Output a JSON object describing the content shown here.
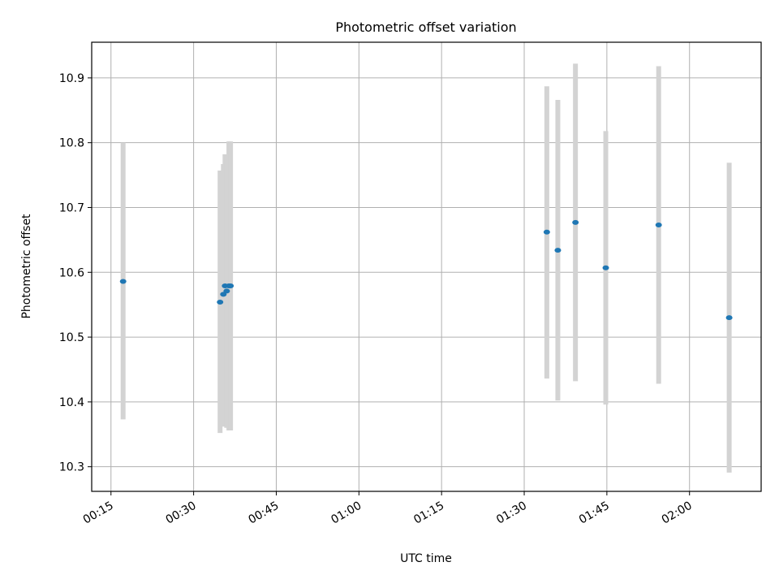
{
  "chart_data": {
    "type": "scatter",
    "title": "Photometric offset variation",
    "xlabel": "UTC time",
    "ylabel": "Photometric offset",
    "x_ticks": [
      "00:15",
      "00:30",
      "00:45",
      "01:00",
      "01:15",
      "01:30",
      "01:45",
      "02:00"
    ],
    "y_ticks": [
      10.3,
      10.4,
      10.5,
      10.6,
      10.7,
      10.8,
      10.9
    ],
    "xlim": [
      "00:11:30",
      "02:13:00"
    ],
    "ylim": [
      10.262,
      10.955
    ],
    "grid": true,
    "point_color": "#1f77b4",
    "errorbar_color": "#d3d3d3",
    "series": [
      {
        "points": [
          {
            "x": "00:17:12",
            "y": 10.586,
            "lo": 10.373,
            "hi": 10.8
          },
          {
            "x": "00:34:48",
            "y": 10.554,
            "lo": 10.352,
            "hi": 10.757
          },
          {
            "x": "00:35:24",
            "y": 10.566,
            "lo": 10.362,
            "hi": 10.767
          },
          {
            "x": "00:35:42",
            "y": 10.579,
            "lo": 10.364,
            "hi": 10.782
          },
          {
            "x": "00:36:00",
            "y": 10.571,
            "lo": 10.36,
            "hi": 10.78
          },
          {
            "x": "00:36:24",
            "y": 10.579,
            "lo": 10.356,
            "hi": 10.802
          },
          {
            "x": "00:36:42",
            "y": 10.579,
            "lo": 10.356,
            "hi": 10.802
          },
          {
            "x": "01:34:06",
            "y": 10.662,
            "lo": 10.436,
            "hi": 10.887
          },
          {
            "x": "01:36:06",
            "y": 10.634,
            "lo": 10.402,
            "hi": 10.866
          },
          {
            "x": "01:39:18",
            "y": 10.677,
            "lo": 10.432,
            "hi": 10.922
          },
          {
            "x": "01:44:48",
            "y": 10.607,
            "lo": 10.396,
            "hi": 10.818
          },
          {
            "x": "01:54:24",
            "y": 10.673,
            "lo": 10.428,
            "hi": 10.918
          },
          {
            "x": "02:07:12",
            "y": 10.53,
            "lo": 10.291,
            "hi": 10.769
          }
        ]
      }
    ]
  }
}
